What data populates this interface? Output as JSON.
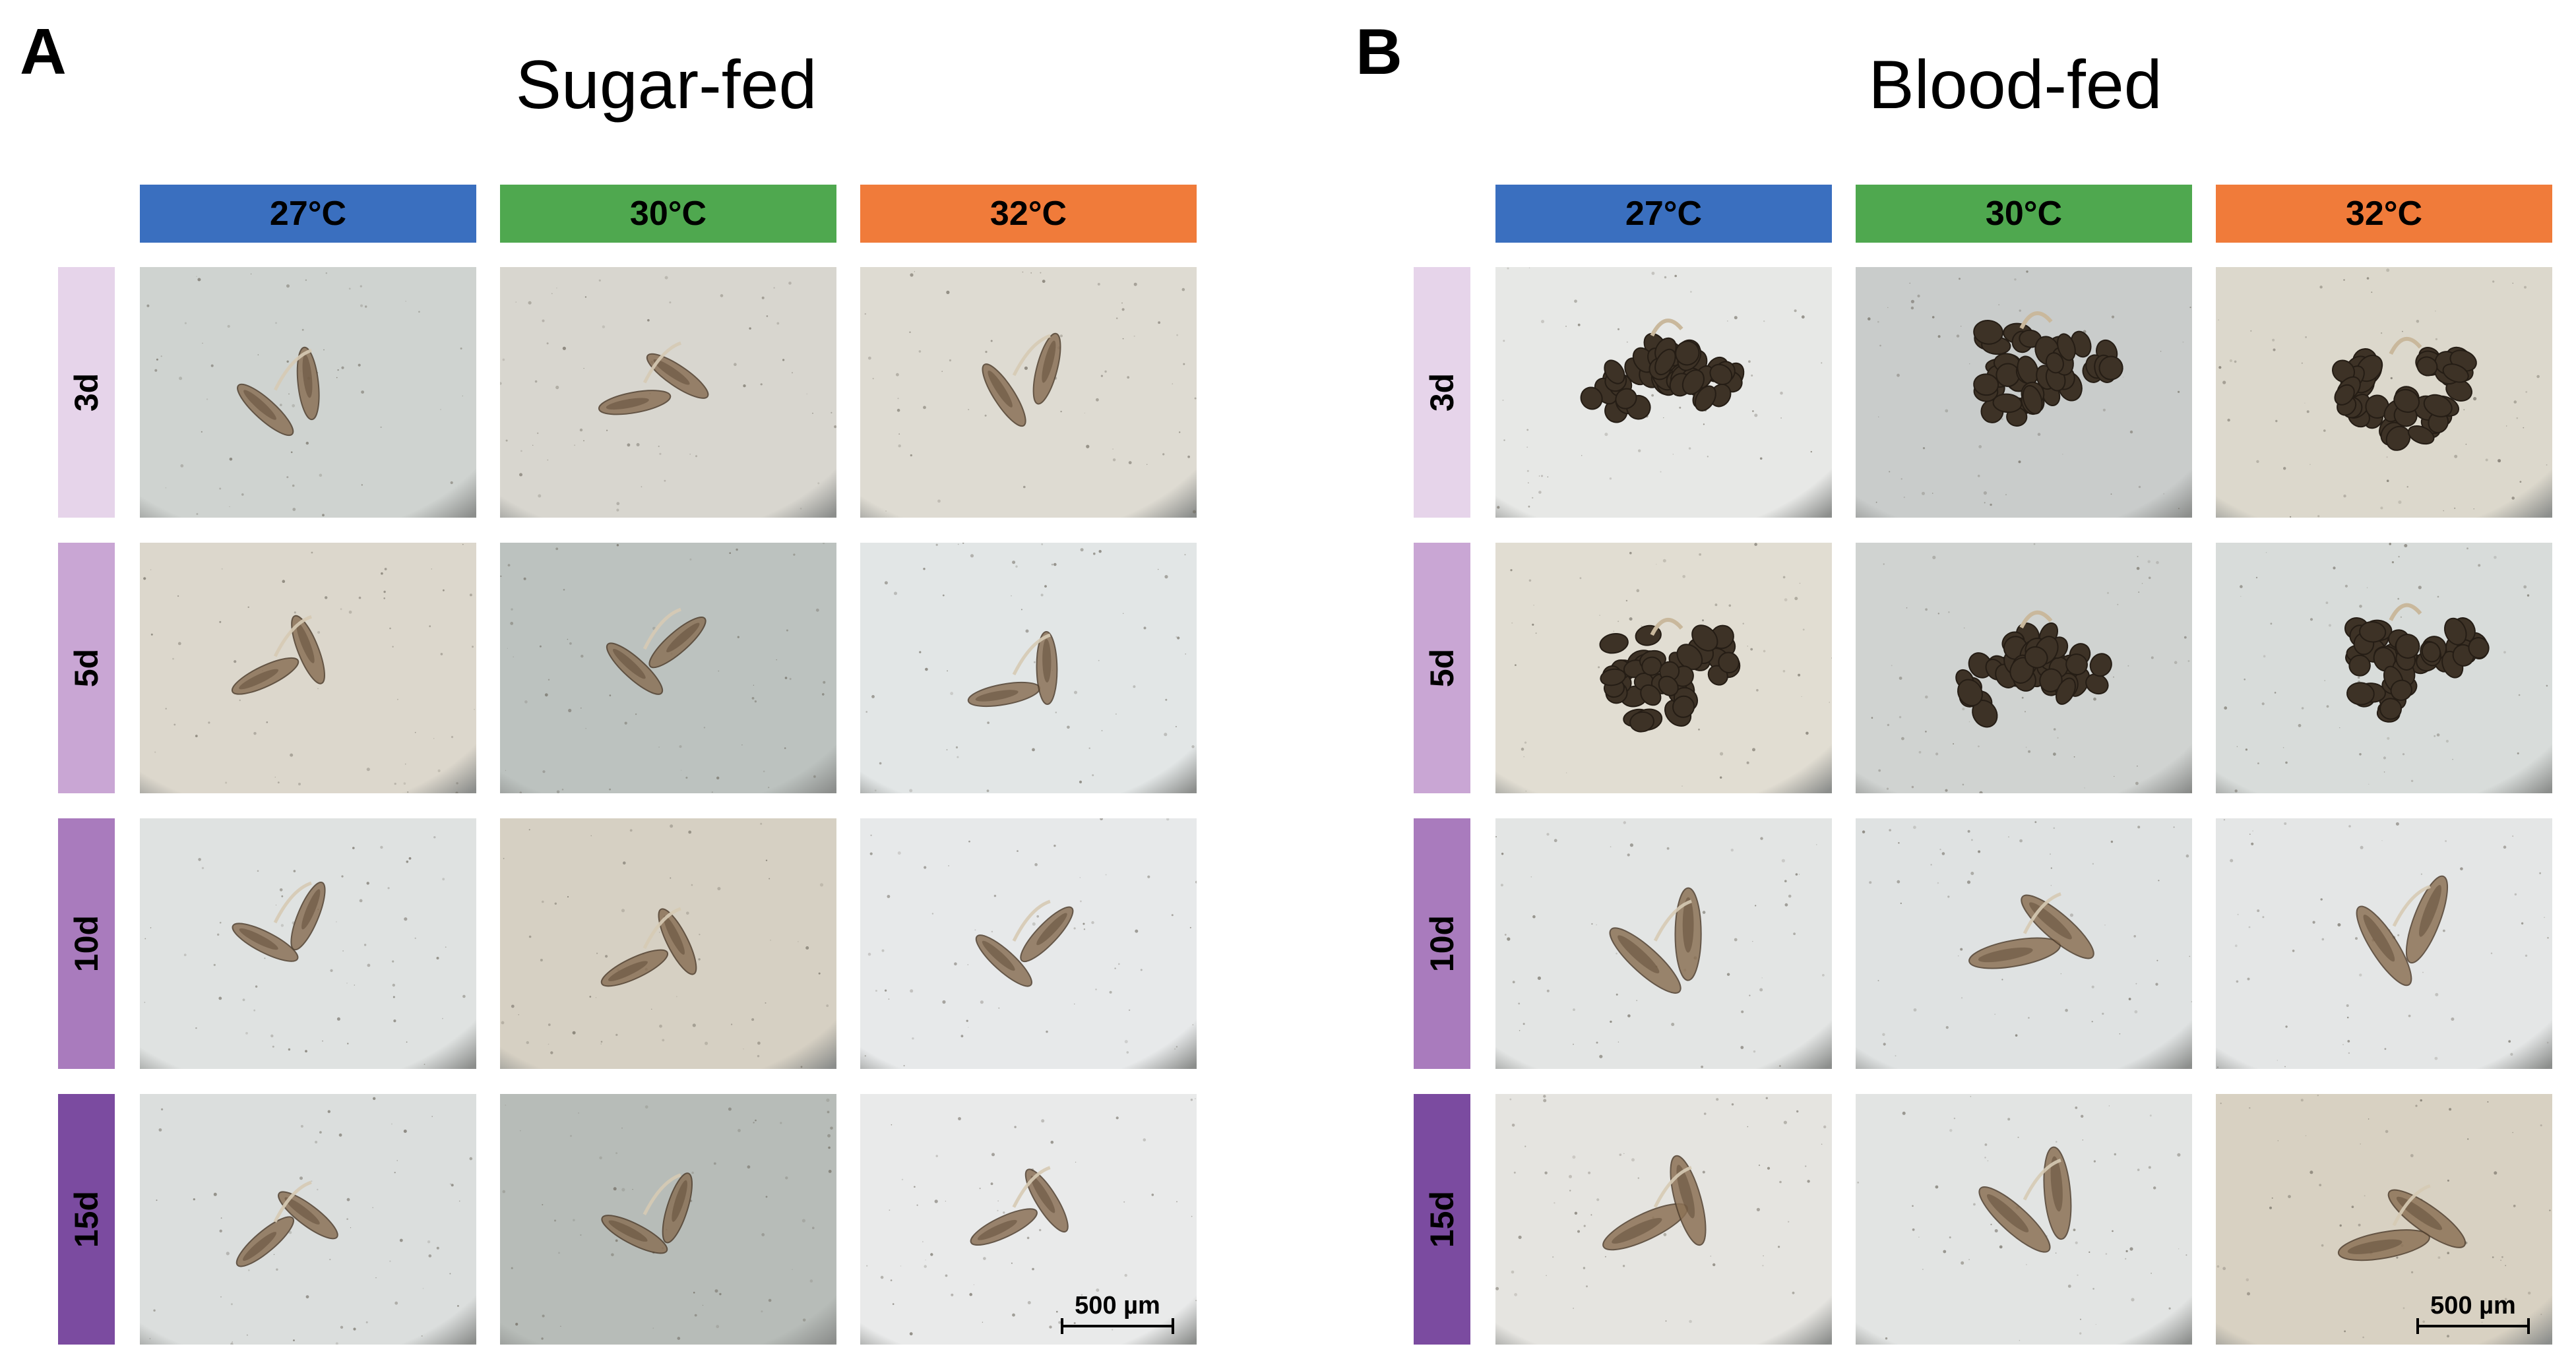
{
  "panels": [
    {
      "letter": "A",
      "title": "Sugar-fed",
      "columns": [
        {
          "label": "27°C",
          "color": "#3a6fbf"
        },
        {
          "label": "30°C",
          "color": "#4fa84f"
        },
        {
          "label": "32°C",
          "color": "#f07b3a"
        }
      ],
      "rows": [
        {
          "label": "3d",
          "color": "#e6d4ea"
        },
        {
          "label": "5d",
          "color": "#c9a6d4"
        },
        {
          "label": "10d",
          "color": "#a97bbd"
        },
        {
          "label": "15d",
          "color": "#7b4ba0"
        }
      ],
      "scale_bar": "500 µm"
    },
    {
      "letter": "B",
      "title": "Blood-fed",
      "columns": [
        {
          "label": "27°C",
          "color": "#3a6fbf"
        },
        {
          "label": "30°C",
          "color": "#4fa84f"
        },
        {
          "label": "32°C",
          "color": "#f07b3a"
        }
      ],
      "rows": [
        {
          "label": "3d",
          "color": "#e6d4ea"
        },
        {
          "label": "5d",
          "color": "#c9a6d4"
        },
        {
          "label": "10d",
          "color": "#a97bbd"
        },
        {
          "label": "15d",
          "color": "#7b4ba0"
        }
      ],
      "scale_bar": "500 µm"
    }
  ],
  "micrographs": {
    "sugar": [
      [
        "#cfd3d0",
        "#d8d6cf",
        "#dedbd2"
      ],
      [
        "#dcd7cc",
        "#bcc2bf",
        "#e2e6e6"
      ],
      [
        "#dfe2e1",
        "#d6d0c3",
        "#e7e9ea"
      ],
      [
        "#dbdedd",
        "#b7bcb8",
        "#e9eaea"
      ]
    ],
    "blood": [
      [
        "#e7e8e6",
        "#c9cccb",
        "#dcd8cc"
      ],
      [
        "#e1ddd2",
        "#d0d3d1",
        "#d8dcda"
      ],
      [
        "#e3e5e4",
        "#dfe2e2",
        "#e4e6e6"
      ],
      [
        "#e5e4e0",
        "#e2e4e3",
        "#d8d1c2"
      ]
    ]
  }
}
